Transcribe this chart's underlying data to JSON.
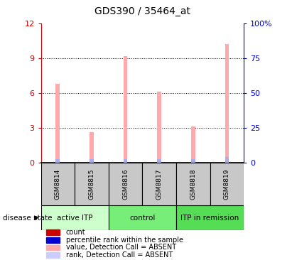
{
  "title": "GDS390 / 35464_at",
  "samples": [
    "GSM8814",
    "GSM8815",
    "GSM8816",
    "GSM8817",
    "GSM8818",
    "GSM8819"
  ],
  "pink_bar_values": [
    6.8,
    2.6,
    9.2,
    6.1,
    3.1,
    10.2
  ],
  "blue_bar_values": [
    0.3,
    0.3,
    0.3,
    0.3,
    0.3,
    0.45
  ],
  "left_ylim": [
    0,
    12
  ],
  "left_yticks": [
    0,
    3,
    6,
    9,
    12
  ],
  "left_ycolor": "#cc0000",
  "right_ycolor": "#0000cc",
  "pink_color": "#ffaaaa",
  "blue_color": "#aaaaee",
  "pink_bar_width": 0.12,
  "blue_bar_width": 0.12,
  "groups": [
    {
      "label": "active ITP",
      "start": 0,
      "end": 2,
      "color": "#ccffcc"
    },
    {
      "label": "control",
      "start": 2,
      "end": 4,
      "color": "#77ee77"
    },
    {
      "label": "ITP in remission",
      "start": 4,
      "end": 6,
      "color": "#55dd55"
    }
  ],
  "legend_colors": [
    "#cc0000",
    "#0000cc",
    "#ffaaaa",
    "#ccccff"
  ],
  "legend_labels": [
    "count",
    "percentile rank within the sample",
    "value, Detection Call = ABSENT",
    "rank, Detection Call = ABSENT"
  ]
}
